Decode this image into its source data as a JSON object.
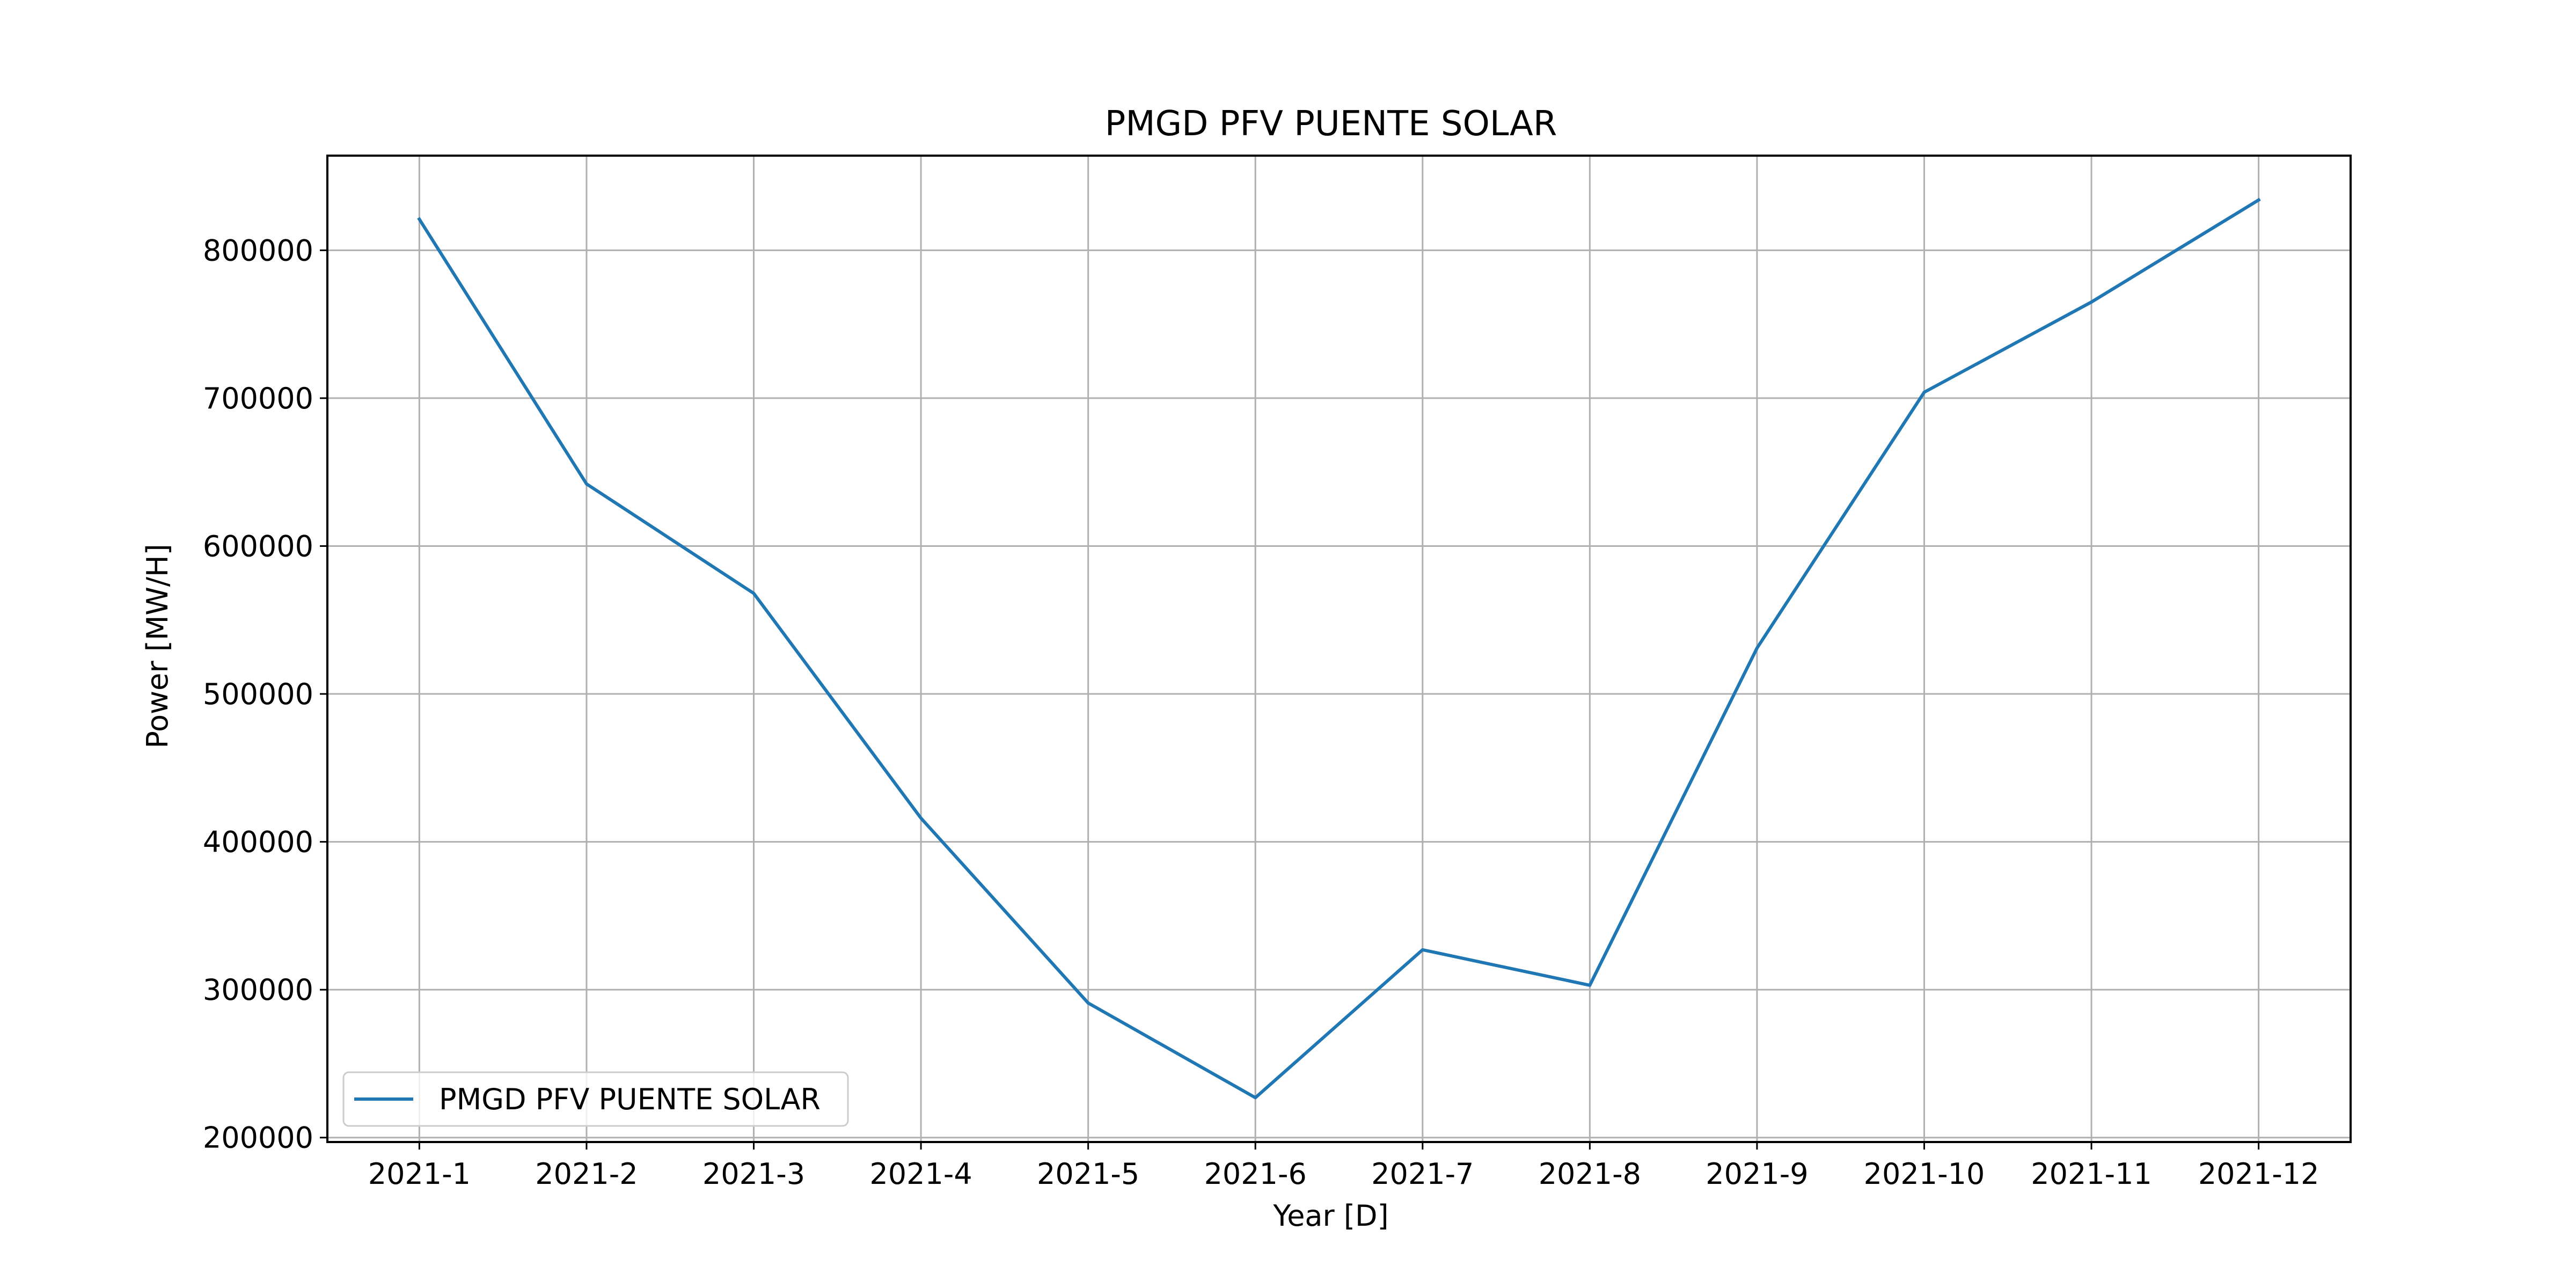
{
  "chart_data": {
    "type": "line",
    "title": "PMGD PFV PUENTE SOLAR",
    "xlabel": "Year [D]",
    "ylabel": "Power [MW/H]",
    "categories": [
      "2021-1",
      "2021-2",
      "2021-3",
      "2021-4",
      "2021-5",
      "2021-6",
      "2021-7",
      "2021-8",
      "2021-9",
      "2021-10",
      "2021-11",
      "2021-12"
    ],
    "series": [
      {
        "name": "PMGD PFV PUENTE SOLAR",
        "color": "#1f77b4",
        "values": [
          821000,
          642000,
          568000,
          416000,
          291000,
          227000,
          327000,
          303000,
          531000,
          704000,
          765000,
          834000
        ]
      }
    ],
    "ylim": [
      197000,
      864000
    ],
    "yticks": [
      200000,
      300000,
      400000,
      500000,
      600000,
      700000,
      800000
    ],
    "grid": true,
    "legend_position": "lower-left"
  }
}
